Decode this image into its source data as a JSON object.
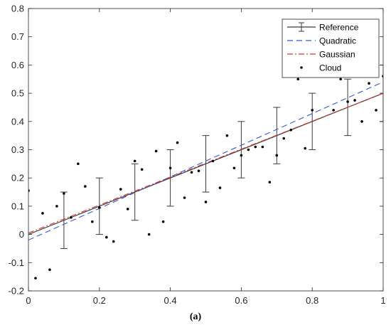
{
  "caption": "(a)",
  "chart_data": {
    "type": "line",
    "xlim": [
      0,
      1
    ],
    "ylim": [
      -0.2,
      0.8
    ],
    "xticks": [
      "0",
      "0.2",
      "0.4",
      "0.6",
      "0.8",
      "1"
    ],
    "yticks": [
      "-0.2",
      "-0.1",
      "0",
      "0.1",
      "0.2",
      "0.3",
      "0.4",
      "0.5",
      "0.6",
      "0.7",
      "0.8"
    ],
    "grid": false,
    "legend_position": "top-right",
    "series": [
      {
        "name": "Reference",
        "style": "solid-errorbar",
        "color": "#3a3a3a",
        "x": [
          0,
          1
        ],
        "y": [
          0,
          0.5
        ],
        "errorbars": [
          {
            "x": 0.1,
            "y": 0.05,
            "low": -0.05,
            "high": 0.15
          },
          {
            "x": 0.2,
            "y": 0.1,
            "low": 0.0,
            "high": 0.2
          },
          {
            "x": 0.3,
            "y": 0.15,
            "low": 0.05,
            "high": 0.25
          },
          {
            "x": 0.4,
            "y": 0.2,
            "low": 0.1,
            "high": 0.3
          },
          {
            "x": 0.5,
            "y": 0.25,
            "low": 0.15,
            "high": 0.35
          },
          {
            "x": 0.6,
            "y": 0.3,
            "low": 0.2,
            "high": 0.4
          },
          {
            "x": 0.7,
            "y": 0.35,
            "low": 0.25,
            "high": 0.45
          },
          {
            "x": 0.8,
            "y": 0.4,
            "low": 0.3,
            "high": 0.5
          },
          {
            "x": 0.9,
            "y": 0.45,
            "low": 0.35,
            "high": 0.55
          },
          {
            "x": 1.0,
            "y": 0.5,
            "low": 0.4,
            "high": 0.6
          }
        ]
      },
      {
        "name": "Quadratic",
        "style": "dashed",
        "color": "#3355dd",
        "x": [
          0,
          1
        ],
        "y": [
          -0.02,
          0.54
        ]
      },
      {
        "name": "Gaussian",
        "style": "dashdot",
        "color": "#dd3333",
        "x": [
          0,
          1
        ],
        "y": [
          0.005,
          0.5
        ]
      },
      {
        "name": "Cloud",
        "style": "points",
        "color": "#000000",
        "points": [
          [
            0.0,
            0.155
          ],
          [
            0.02,
            -0.155
          ],
          [
            0.04,
            0.075
          ],
          [
            0.06,
            -0.125
          ],
          [
            0.08,
            0.1
          ],
          [
            0.1,
            0.145
          ],
          [
            0.12,
            0.06
          ],
          [
            0.14,
            0.25
          ],
          [
            0.16,
            0.17
          ],
          [
            0.18,
            0.045
          ],
          [
            0.2,
            0.095
          ],
          [
            0.22,
            -0.01
          ],
          [
            0.24,
            -0.025
          ],
          [
            0.26,
            0.16
          ],
          [
            0.28,
            0.09
          ],
          [
            0.3,
            0.26
          ],
          [
            0.32,
            0.23
          ],
          [
            0.34,
            0.0
          ],
          [
            0.36,
            0.295
          ],
          [
            0.38,
            0.045
          ],
          [
            0.4,
            0.235
          ],
          [
            0.42,
            0.325
          ],
          [
            0.44,
            0.13
          ],
          [
            0.46,
            0.22
          ],
          [
            0.48,
            0.225
          ],
          [
            0.5,
            0.115
          ],
          [
            0.52,
            0.26
          ],
          [
            0.54,
            0.165
          ],
          [
            0.56,
            0.35
          ],
          [
            0.58,
            0.235
          ],
          [
            0.6,
            0.28
          ],
          [
            0.62,
            0.3
          ],
          [
            0.64,
            0.31
          ],
          [
            0.66,
            0.31
          ],
          [
            0.68,
            0.185
          ],
          [
            0.7,
            0.28
          ],
          [
            0.72,
            0.34
          ],
          [
            0.74,
            0.37
          ],
          [
            0.76,
            0.55
          ],
          [
            0.78,
            0.305
          ],
          [
            0.8,
            0.44
          ],
          [
            0.82,
            0.58
          ],
          [
            0.84,
            0.575
          ],
          [
            0.86,
            0.44
          ],
          [
            0.88,
            0.55
          ],
          [
            0.9,
            0.47
          ],
          [
            0.92,
            0.475
          ],
          [
            0.94,
            0.4
          ],
          [
            0.96,
            0.535
          ],
          [
            0.98,
            0.44
          ],
          [
            1.0,
            0.56
          ]
        ]
      }
    ]
  }
}
